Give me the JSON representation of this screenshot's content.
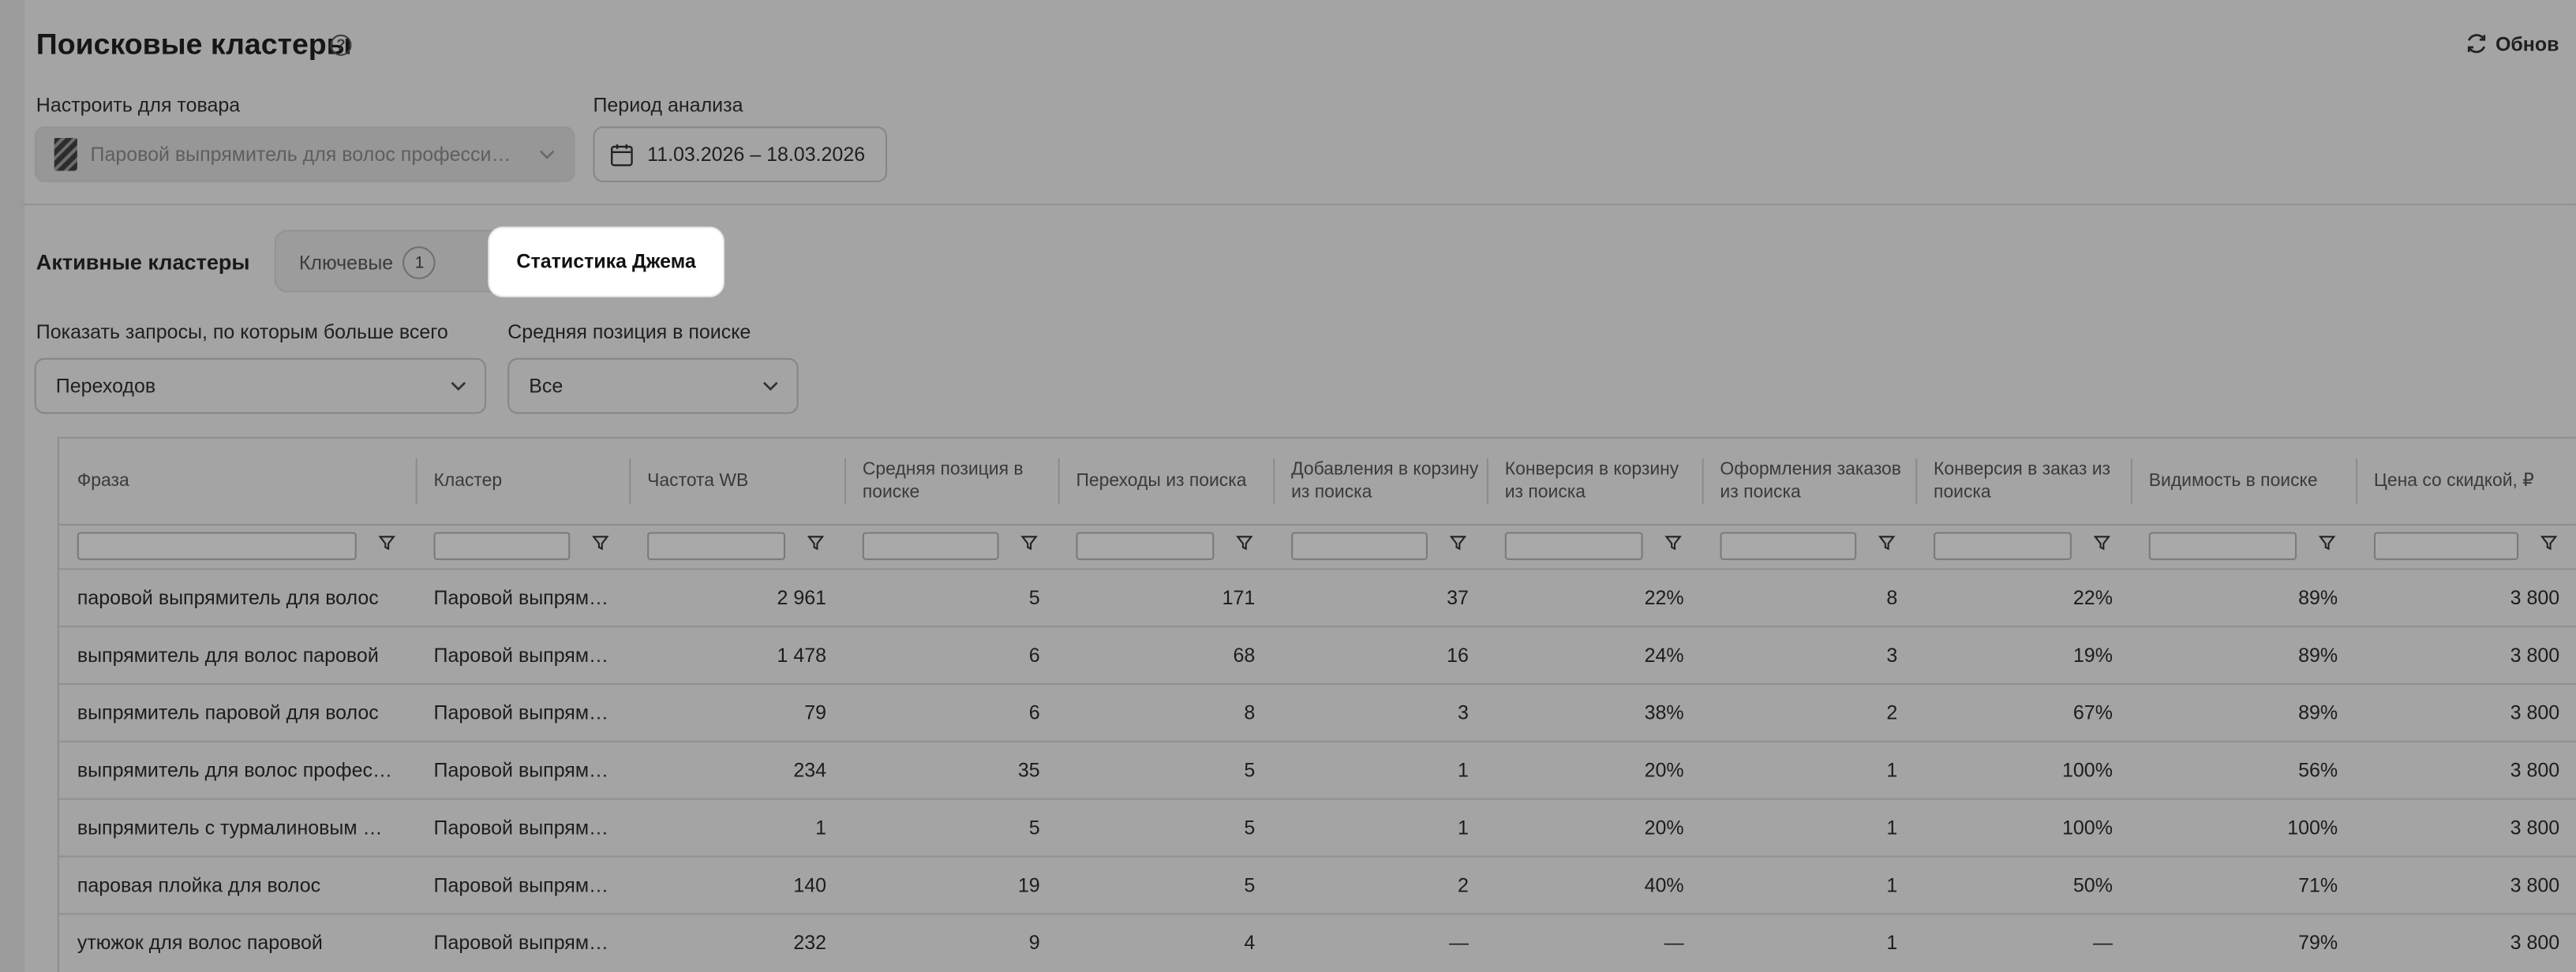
{
  "header": {
    "title": "Поисковые кластеры",
    "help": "?",
    "refresh_label": "Обнов"
  },
  "settings": {
    "product_label": "Настроить для товара",
    "product_value": "Паровой выпрямитель для волос професси…",
    "period_label": "Период анализа",
    "period_value": "11.03.2026 – 18.03.2026"
  },
  "clusters": {
    "label": "Активные кластеры",
    "tab_keys_label": "Ключевые",
    "tab_keys_count": "1",
    "tab_stats_label": "Статистика Джема"
  },
  "filters": {
    "show_label": "Показать запросы, по которым больше всего",
    "show_value": "Переходов",
    "position_label": "Средняя позиция в поиске",
    "position_value": "Все"
  },
  "table": {
    "columns": [
      "Фраза",
      "Кластер",
      "Частота WB",
      "Средняя позиция в поиске",
      "Переходы из поиска",
      "Добавления в корзину из поиска",
      "Конверсия в корзину из поиска",
      "Оформления заказов из поиска",
      "Конверсия в заказ из поиска",
      "Видимость в поиске",
      "Цена со скидкой, ₽"
    ],
    "rows": [
      [
        "паровой выпрямитель для волос",
        "Паровой выпрям…",
        "2 961",
        "5",
        "171",
        "37",
        "22%",
        "8",
        "22%",
        "89%",
        "3 800"
      ],
      [
        "выпрямитель для волос паровой",
        "Паровой выпрям…",
        "1 478",
        "6",
        "68",
        "16",
        "24%",
        "3",
        "19%",
        "89%",
        "3 800"
      ],
      [
        "выпрямитель паровой для волос",
        "Паровой выпрям…",
        "79",
        "6",
        "8",
        "3",
        "38%",
        "2",
        "67%",
        "89%",
        "3 800"
      ],
      [
        "выпрямитель для волос профес…",
        "Паровой выпрям…",
        "234",
        "35",
        "5",
        "1",
        "20%",
        "1",
        "100%",
        "56%",
        "3 800"
      ],
      [
        "выпрямитель с турмалиновым …",
        "Паровой выпрям…",
        "1",
        "5",
        "5",
        "1",
        "20%",
        "1",
        "100%",
        "100%",
        "3 800"
      ],
      [
        "паровая плойка для волос",
        "Паровой выпрям…",
        "140",
        "19",
        "5",
        "2",
        "40%",
        "1",
        "50%",
        "71%",
        "3 800"
      ],
      [
        "утюжок для волос паровой",
        "Паровой выпрям…",
        "232",
        "9",
        "4",
        "—",
        "—",
        "1",
        "—",
        "79%",
        "3 800"
      ]
    ]
  }
}
